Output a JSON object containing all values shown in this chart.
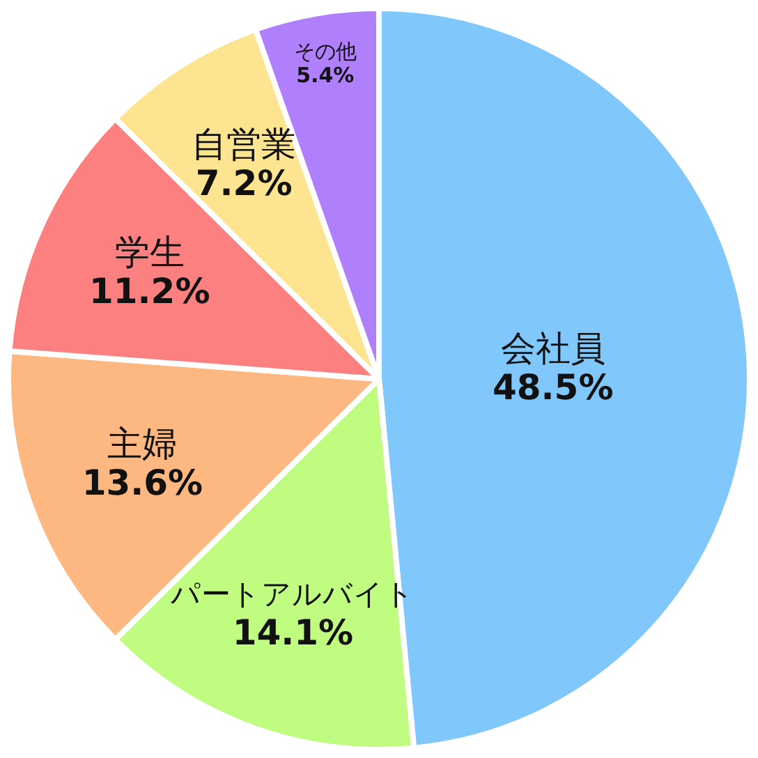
{
  "chart_data": {
    "type": "pie",
    "categories": [
      "会社員",
      "パートアルバイト",
      "主婦",
      "学生",
      "自営業",
      "その他"
    ],
    "values": [
      48.5,
      14.1,
      13.6,
      11.2,
      7.2,
      5.4
    ],
    "colors": [
      "#80c8fc",
      "#c0fc80",
      "#fcb880",
      "#fc8080",
      "#fce490",
      "#b080fc"
    ],
    "value_labels": [
      "48.5%",
      "14.1%",
      "13.6%",
      "11.2%",
      "7.2%",
      "5.4%"
    ],
    "legend": false
  }
}
